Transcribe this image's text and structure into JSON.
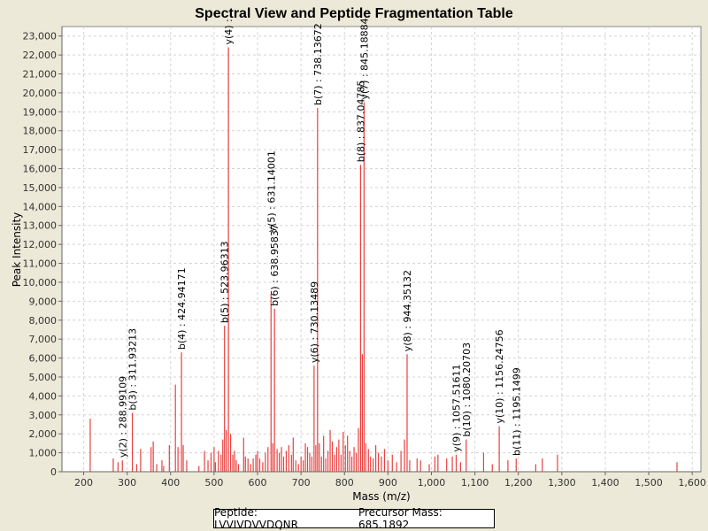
{
  "chart_data": {
    "type": "bar",
    "title": "Spectral View and Peptide Fragmentation Table",
    "xlabel": "Mass (m/z)",
    "ylabel": "Peak Intensity",
    "xlim": [
      150,
      1620
    ],
    "ylim": [
      0,
      23500
    ],
    "x_ticks": [
      200,
      300,
      400,
      500,
      600,
      700,
      800,
      900,
      1000,
      1100,
      1200,
      1300,
      1400,
      1500,
      1600
    ],
    "x_tick_labels": [
      "200",
      "300",
      "400",
      "500",
      "600",
      "700",
      "800",
      "900",
      "1,000",
      "1,100",
      "1,200",
      "1,300",
      "1,400",
      "1,500",
      "1,600"
    ],
    "y_ticks": [
      0,
      1000,
      2000,
      3000,
      4000,
      5000,
      6000,
      7000,
      8000,
      9000,
      10000,
      11000,
      12000,
      13000,
      14000,
      15000,
      16000,
      17000,
      18000,
      19000,
      20000,
      21000,
      22000,
      23000
    ],
    "y_tick_labels": [
      "0",
      "1,000",
      "2,000",
      "3,000",
      "4,000",
      "5,000",
      "6,000",
      "7,000",
      "8,000",
      "9,000",
      "10,000",
      "11,000",
      "12,000",
      "13,000",
      "14,000",
      "15,000",
      "16,000",
      "17,000",
      "18,000",
      "19,000",
      "20,000",
      "21,000",
      "22,000",
      "23,000"
    ],
    "grid": true,
    "peak_color": "#e8413f",
    "peaks": [
      {
        "x": 215,
        "y": 2800
      },
      {
        "x": 268,
        "y": 700
      },
      {
        "x": 279,
        "y": 500
      },
      {
        "x": 289,
        "y": 600
      },
      {
        "x": 312,
        "y": 3100
      },
      {
        "x": 322,
        "y": 400
      },
      {
        "x": 331,
        "y": 1200
      },
      {
        "x": 355,
        "y": 1300
      },
      {
        "x": 360,
        "y": 1600
      },
      {
        "x": 368,
        "y": 400
      },
      {
        "x": 380,
        "y": 600
      },
      {
        "x": 384,
        "y": 300
      },
      {
        "x": 397,
        "y": 1400
      },
      {
        "x": 411,
        "y": 4600
      },
      {
        "x": 417,
        "y": 1300
      },
      {
        "x": 425,
        "y": 6300
      },
      {
        "x": 429,
        "y": 1400
      },
      {
        "x": 437,
        "y": 600
      },
      {
        "x": 465,
        "y": 300
      },
      {
        "x": 478,
        "y": 1100
      },
      {
        "x": 486,
        "y": 600
      },
      {
        "x": 493,
        "y": 1000
      },
      {
        "x": 500,
        "y": 1300
      },
      {
        "x": 503,
        "y": 500
      },
      {
        "x": 510,
        "y": 1100
      },
      {
        "x": 516,
        "y": 900
      },
      {
        "x": 520,
        "y": 1700
      },
      {
        "x": 524,
        "y": 7700
      },
      {
        "x": 528,
        "y": 2200
      },
      {
        "x": 533,
        "y": 22400
      },
      {
        "x": 538,
        "y": 2000
      },
      {
        "x": 543,
        "y": 900
      },
      {
        "x": 547,
        "y": 1100
      },
      {
        "x": 551,
        "y": 600
      },
      {
        "x": 556,
        "y": 400
      },
      {
        "x": 568,
        "y": 1800
      },
      {
        "x": 572,
        "y": 800
      },
      {
        "x": 578,
        "y": 700
      },
      {
        "x": 584,
        "y": 400
      },
      {
        "x": 590,
        "y": 700
      },
      {
        "x": 596,
        "y": 900
      },
      {
        "x": 600,
        "y": 1100
      },
      {
        "x": 605,
        "y": 700
      },
      {
        "x": 612,
        "y": 500
      },
      {
        "x": 618,
        "y": 1000
      },
      {
        "x": 624,
        "y": 1300
      },
      {
        "x": 631,
        "y": 9400
      },
      {
        "x": 635,
        "y": 1500
      },
      {
        "x": 639,
        "y": 8600
      },
      {
        "x": 645,
        "y": 1200
      },
      {
        "x": 650,
        "y": 1000
      },
      {
        "x": 655,
        "y": 1300
      },
      {
        "x": 660,
        "y": 800
      },
      {
        "x": 666,
        "y": 1100
      },
      {
        "x": 672,
        "y": 1400
      },
      {
        "x": 678,
        "y": 900
      },
      {
        "x": 682,
        "y": 1800
      },
      {
        "x": 688,
        "y": 600
      },
      {
        "x": 694,
        "y": 400
      },
      {
        "x": 700,
        "y": 800
      },
      {
        "x": 705,
        "y": 600
      },
      {
        "x": 710,
        "y": 1500
      },
      {
        "x": 715,
        "y": 1300
      },
      {
        "x": 720,
        "y": 1000
      },
      {
        "x": 725,
        "y": 800
      },
      {
        "x": 730,
        "y": 5600
      },
      {
        "x": 734,
        "y": 1400
      },
      {
        "x": 738,
        "y": 19200
      },
      {
        "x": 742,
        "y": 1500
      },
      {
        "x": 747,
        "y": 800
      },
      {
        "x": 752,
        "y": 1900
      },
      {
        "x": 757,
        "y": 700
      },
      {
        "x": 762,
        "y": 1100
      },
      {
        "x": 767,
        "y": 2200
      },
      {
        "x": 772,
        "y": 1600
      },
      {
        "x": 777,
        "y": 900
      },
      {
        "x": 782,
        "y": 1300
      },
      {
        "x": 787,
        "y": 1700
      },
      {
        "x": 792,
        "y": 900
      },
      {
        "x": 797,
        "y": 2100
      },
      {
        "x": 802,
        "y": 1400
      },
      {
        "x": 807,
        "y": 1900
      },
      {
        "x": 812,
        "y": 1100
      },
      {
        "x": 817,
        "y": 800
      },
      {
        "x": 822,
        "y": 1300
      },
      {
        "x": 827,
        "y": 1000
      },
      {
        "x": 832,
        "y": 2300
      },
      {
        "x": 837,
        "y": 16200
      },
      {
        "x": 841,
        "y": 6200
      },
      {
        "x": 845,
        "y": 19500
      },
      {
        "x": 849,
        "y": 1500
      },
      {
        "x": 855,
        "y": 1200
      },
      {
        "x": 860,
        "y": 800
      },
      {
        "x": 866,
        "y": 700
      },
      {
        "x": 872,
        "y": 1400
      },
      {
        "x": 878,
        "y": 1000
      },
      {
        "x": 885,
        "y": 800
      },
      {
        "x": 892,
        "y": 1200
      },
      {
        "x": 900,
        "y": 600
      },
      {
        "x": 910,
        "y": 900
      },
      {
        "x": 920,
        "y": 500
      },
      {
        "x": 930,
        "y": 1100
      },
      {
        "x": 938,
        "y": 1700
      },
      {
        "x": 944,
        "y": 6200
      },
      {
        "x": 950,
        "y": 600
      },
      {
        "x": 967,
        "y": 700
      },
      {
        "x": 975,
        "y": 600
      },
      {
        "x": 995,
        "y": 400
      },
      {
        "x": 1008,
        "y": 800
      },
      {
        "x": 1015,
        "y": 900
      },
      {
        "x": 1035,
        "y": 700
      },
      {
        "x": 1048,
        "y": 800
      },
      {
        "x": 1057,
        "y": 900
      },
      {
        "x": 1067,
        "y": 500
      },
      {
        "x": 1080,
        "y": 1700
      },
      {
        "x": 1120,
        "y": 1000
      },
      {
        "x": 1140,
        "y": 400
      },
      {
        "x": 1156,
        "y": 2400
      },
      {
        "x": 1176,
        "y": 600
      },
      {
        "x": 1195,
        "y": 700
      },
      {
        "x": 1240,
        "y": 400
      },
      {
        "x": 1255,
        "y": 700
      },
      {
        "x": 1290,
        "y": 900
      },
      {
        "x": 1565,
        "y": 500
      }
    ],
    "annotations": [
      {
        "label": "y(2) : 288.99109",
        "x": 288.99,
        "y": 600
      },
      {
        "label": "b(3) : 311.93213",
        "x": 311.93,
        "y": 3100
      },
      {
        "label": "b(4) : 424.94171",
        "x": 424.94,
        "y": 6300
      },
      {
        "label": "b(5) : 523.96313",
        "x": 523.96,
        "y": 7700
      },
      {
        "label": "y(4) :",
        "x": 533.0,
        "y": 22400
      },
      {
        "label": "y(5) : 631.14001",
        "x": 631.14,
        "y": 12500
      },
      {
        "label": "b(6) : 638.95837",
        "x": 638.96,
        "y": 8600
      },
      {
        "label": "y(6) : 730.13489",
        "x": 730.13,
        "y": 5600
      },
      {
        "label": "b(7) : 738.13672",
        "x": 738.14,
        "y": 19200
      },
      {
        "label": "b(8) : 837.04785",
        "x": 837.05,
        "y": 16200
      },
      {
        "label": "y(7) : 845.18884",
        "x": 845.19,
        "y": 19500
      },
      {
        "label": "y(8) : 944.35132",
        "x": 944.35,
        "y": 6200
      },
      {
        "label": "y(9) : 1057.51611",
        "x": 1057.52,
        "y": 900
      },
      {
        "label": "b(10) : 1080.20703",
        "x": 1080.21,
        "y": 1700
      },
      {
        "label": "y(10) : 1156.24756",
        "x": 1156.25,
        "y": 2400
      },
      {
        "label": "b(11) : 1195.1499",
        "x": 1195.15,
        "y": 700
      }
    ],
    "legend": {
      "peptide": "Peptide: LVVIVDVVDQNR",
      "precursor": "Precursor Mass: 685.1892",
      "placement": "bottom-center"
    }
  }
}
